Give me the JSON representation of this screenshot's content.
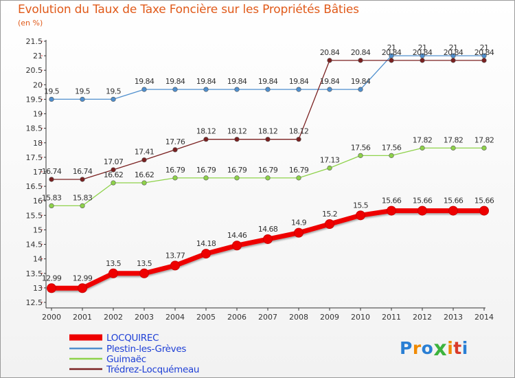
{
  "title": "Evolution du Taux de Taxe Foncière sur les Propriétés Bâties",
  "subtitle": "(en %)",
  "logo": {
    "text": "Proxiti",
    "colors": [
      "#2a7fd4",
      "#f08a00",
      "#2a7fd4",
      "#3db33d",
      "#f08a00",
      "#d93b2a",
      "#2a7fd4"
    ]
  },
  "chart_data": {
    "type": "line",
    "title": "Evolution du Taux de Taxe Foncière sur les Propriétés Bâties",
    "ylabel": "(en %)",
    "x": [
      2000,
      2001,
      2002,
      2003,
      2004,
      2005,
      2006,
      2007,
      2008,
      2009,
      2010,
      2011,
      2012,
      2013,
      2014
    ],
    "ylim": [
      12.5,
      21.5
    ],
    "yticks": [
      "12.5",
      "13",
      "13.5",
      "14",
      "14.5",
      "15",
      "15.5",
      "16",
      "16.5",
      "17",
      "17.5",
      "18",
      "18.5",
      "19",
      "19.5",
      "20",
      "20.5",
      "21",
      "21.5"
    ],
    "grid": false,
    "legend_position": "bottom-left",
    "series": [
      {
        "name": "LOCQUIREC",
        "color": "#ee0000",
        "highlight": true,
        "values": [
          12.99,
          12.99,
          13.5,
          13.5,
          13.77,
          14.18,
          14.46,
          14.68,
          14.9,
          15.2,
          15.5,
          15.66,
          15.66,
          15.66,
          15.66
        ],
        "labels": [
          "12.99",
          "12.99",
          "13.5",
          "13.5",
          "13.77",
          "14.18",
          "14.46",
          "14.68",
          "14.9",
          "15.2",
          "15.5",
          "15.66",
          "15.66",
          "15.66",
          "15.66"
        ]
      },
      {
        "name": "Plestin-les-Grèves",
        "color": "#4f8fce",
        "highlight": false,
        "values": [
          19.5,
          19.5,
          19.5,
          19.84,
          19.84,
          19.84,
          19.84,
          19.84,
          19.84,
          19.84,
          19.84,
          21,
          21,
          21,
          21
        ],
        "labels": [
          "19.5",
          "19.5",
          "19.5",
          "19.84",
          "19.84",
          "19.84",
          "19.84",
          "19.84",
          "19.84",
          "19.84",
          "19.84",
          "21",
          "21",
          "21",
          "21"
        ]
      },
      {
        "name": "Guimaëc",
        "color": "#8ed24a",
        "highlight": false,
        "values": [
          15.83,
          15.83,
          16.62,
          16.62,
          16.79,
          16.79,
          16.79,
          16.79,
          16.79,
          17.13,
          17.56,
          17.56,
          17.82,
          17.82,
          17.82
        ],
        "labels": [
          "15.83",
          "15.83",
          "16.62",
          "16.62",
          "16.79",
          "16.79",
          "16.79",
          "16.79",
          "16.79",
          "17.13",
          "17.56",
          "17.56",
          "17.82",
          "17.82",
          "17.82"
        ]
      },
      {
        "name": "Trédrez-Locquémeau",
        "color": "#7a2020",
        "highlight": false,
        "values": [
          16.74,
          16.74,
          17.07,
          17.41,
          17.76,
          18.12,
          18.12,
          18.12,
          18.12,
          20.84,
          20.84,
          20.84,
          20.84,
          20.84,
          20.84
        ],
        "labels": [
          "16.74",
          "16.74",
          "17.07",
          "17.41",
          "17.76",
          "18.12",
          "18.12",
          "18.12",
          "18.12",
          "20.84",
          "20.84",
          "20.84",
          "20.84",
          "20.84",
          "20.84"
        ]
      }
    ]
  }
}
